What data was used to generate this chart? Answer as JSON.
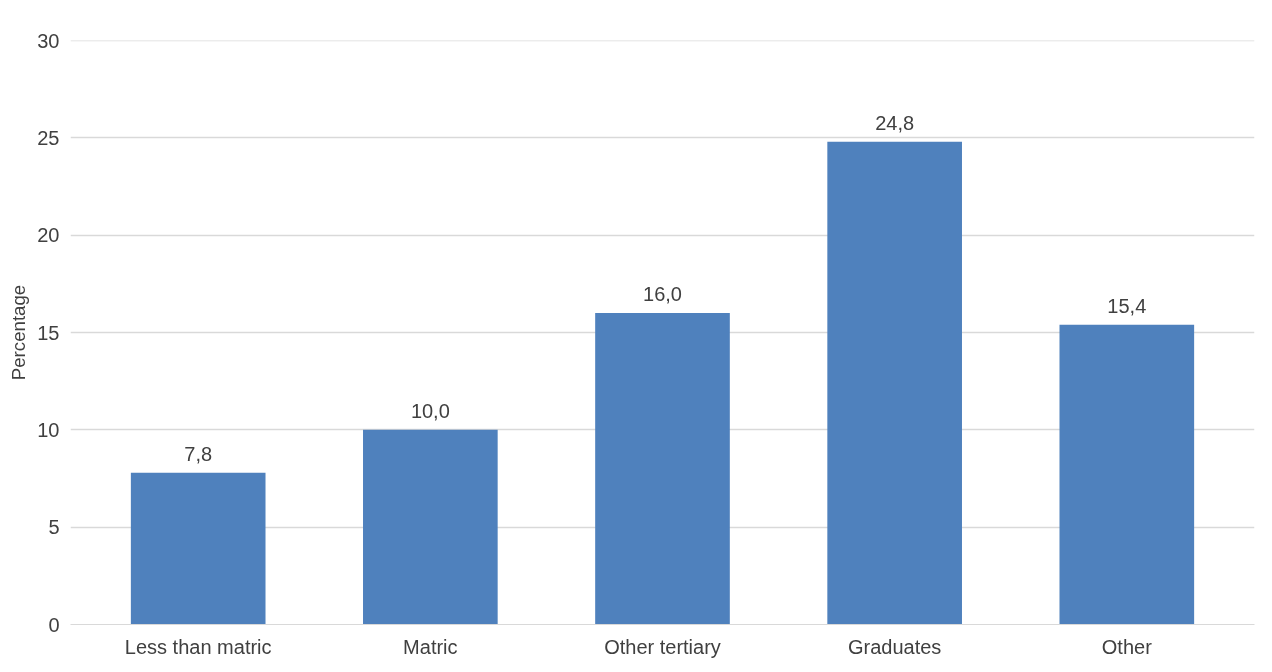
{
  "chart_data": {
    "type": "bar",
    "ylabel": "Percentage",
    "categories": [
      "Less than matric",
      "Matric",
      "Other tertiary",
      "Graduates",
      "Other"
    ],
    "values": [
      7.8,
      10.0,
      16.0,
      24.8,
      15.4
    ],
    "value_labels": [
      "7,8",
      "10,0",
      "16,0",
      "24,8",
      "15,4"
    ],
    "color": "#4f81bd",
    "ylim": [
      0,
      30
    ],
    "yticks": [
      0,
      5,
      10,
      15,
      20,
      25,
      30
    ],
    "grid": "y"
  }
}
